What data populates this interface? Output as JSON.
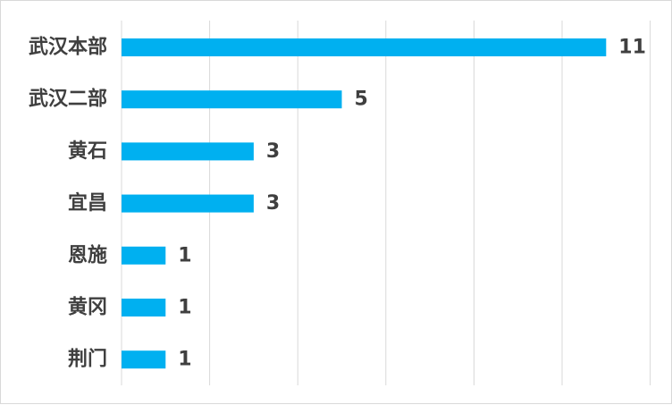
{
  "chart_data": {
    "type": "bar",
    "orientation": "horizontal",
    "categories": [
      "武汉本部",
      "武汉二部",
      "黄石",
      "宜昌",
      "恩施",
      "黄冈",
      "荆门"
    ],
    "values": [
      11,
      5,
      3,
      3,
      1,
      1,
      1
    ],
    "title": "",
    "xlabel": "",
    "ylabel": "",
    "xlim": [
      0,
      12
    ],
    "grid": "vertical",
    "legend": "none",
    "bar_color": "#00b0f0",
    "label_color": "#3f3f3f",
    "grid_color": "#d9d9d9"
  }
}
